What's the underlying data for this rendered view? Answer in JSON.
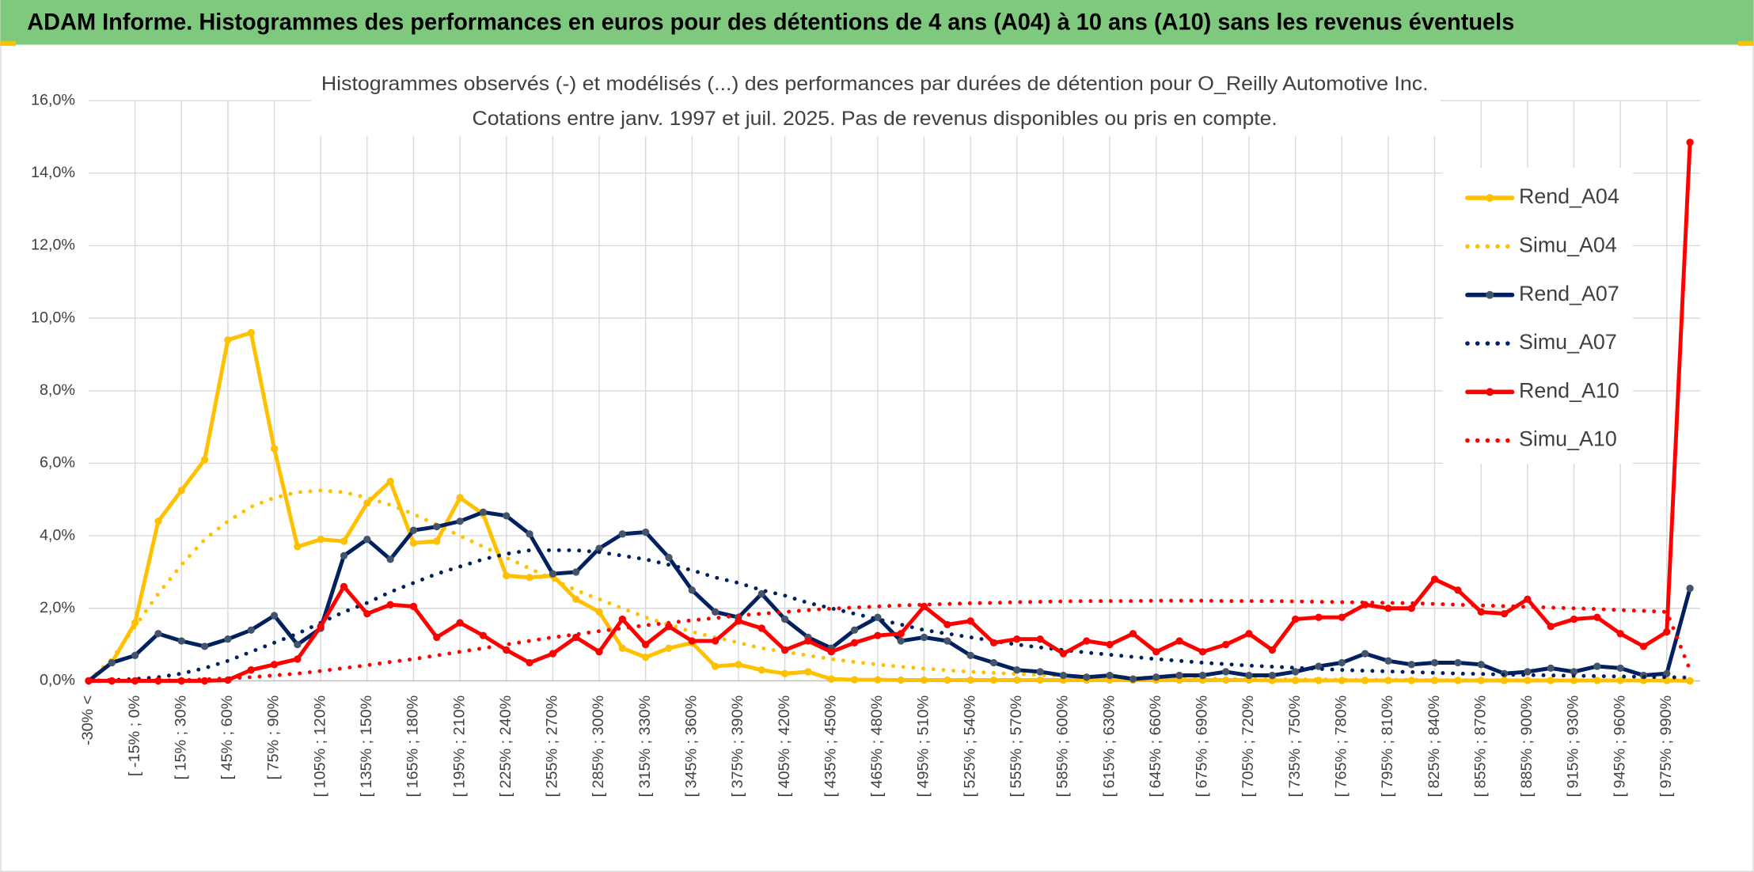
{
  "header": "ADAM Informe. Histogrammes des performances en euros pour des détentions de 4 ans (A04) à 10 ans (A10) sans les revenus éventuels",
  "chart_data": {
    "type": "line",
    "title": "Histogrammes observés (-) et modélisés (...) des performances par durées de détention pour O_Reilly Automotive Inc.",
    "subtitle": "Cotations entre janv. 1997 et juil. 2025. Pas de revenus disponibles ou pris en compte.",
    "categories": [
      "-30% <",
      null,
      "[ -15% ; 0%",
      null,
      "[ 15% ; 30%",
      null,
      "[ 45% ; 60%",
      null,
      "[ 75% ; 90%",
      null,
      "[ 105% ; 120%",
      null,
      "[ 135% ; 150%",
      null,
      "[ 165% ; 180%",
      null,
      "[ 195% ; 210%",
      null,
      "[ 225% ; 240%",
      null,
      "[ 255% ; 270%",
      null,
      "[ 285% ; 300%",
      null,
      "[ 315% ; 330%",
      null,
      "[ 345% ; 360%",
      null,
      "[ 375% ; 390%",
      null,
      "[ 405% ; 420%",
      null,
      "[ 435% ; 450%",
      null,
      "[ 465% ; 480%",
      null,
      "[ 495% ; 510%",
      null,
      "[ 525% ; 540%",
      null,
      "[ 555% ; 570%",
      null,
      "[ 585% ; 600%",
      null,
      "[ 615% ; 630%",
      null,
      "[ 645% ; 660%",
      null,
      "[ 675% ; 690%",
      null,
      "[ 705% ; 720%",
      null,
      "[ 735% ; 750%",
      null,
      "[ 765% ; 780%",
      null,
      "[ 795% ; 810%",
      null,
      "[ 825% ; 840%",
      null,
      "[ 855% ; 870%",
      null,
      "[ 885% ; 900%",
      null,
      "[ 915% ; 930%",
      null,
      "[ 945% ; 960%",
      null,
      "[ 975% ; 990%",
      null
    ],
    "ylim": [
      0,
      16
    ],
    "yticks": [
      {
        "value": 0,
        "label": "0,0%"
      },
      {
        "value": 2,
        "label": "2,0%"
      },
      {
        "value": 4,
        "label": "4,0%"
      },
      {
        "value": 6,
        "label": "6,0%"
      },
      {
        "value": 8,
        "label": "8,0%"
      },
      {
        "value": 10,
        "label": "10,0%"
      },
      {
        "value": 12,
        "label": "12,0%"
      },
      {
        "value": 14,
        "label": "14,0%"
      },
      {
        "value": 16,
        "label": "16,0%"
      }
    ],
    "grid": true,
    "legend": "right",
    "series": [
      {
        "name": "Rend_A04",
        "color": "#ffc000",
        "style": "solid",
        "marker_color": "#ffc000",
        "values": [
          0,
          0.5,
          1.6,
          4.4,
          5.25,
          6.1,
          9.4,
          9.6,
          6.4,
          3.7,
          3.9,
          3.85,
          4.9,
          5.5,
          3.8,
          3.85,
          5.05,
          4.6,
          2.9,
          2.85,
          2.9,
          2.25,
          1.9,
          0.9,
          0.65,
          0.9,
          1.05,
          0.4,
          0.45,
          0.3,
          0.2,
          0.25,
          0.05,
          0.03,
          0.03,
          0.02,
          0.02,
          0.02,
          0.02,
          0.02,
          0.02,
          0.02,
          0.02,
          0.02,
          0.02,
          0.02,
          0.02,
          0.02,
          0.02,
          0.02,
          0.02,
          0.01,
          0.01,
          0.01,
          0.01,
          0.01,
          0.01,
          0.01,
          0.01,
          0.01,
          0.01,
          0.01,
          0.01,
          0.01,
          0.01,
          0.01,
          0.01,
          0.01,
          0.01,
          0
        ]
      },
      {
        "name": "Simu_A04",
        "color": "#ffc000",
        "style": "dotted",
        "values": [
          0,
          0.6,
          1.5,
          2.4,
          3.2,
          3.9,
          4.4,
          4.8,
          5.05,
          5.2,
          5.25,
          5.2,
          5.05,
          4.85,
          4.6,
          4.3,
          4.0,
          3.7,
          3.4,
          3.1,
          2.8,
          2.5,
          2.25,
          2.0,
          1.75,
          1.55,
          1.35,
          1.2,
          1.05,
          0.9,
          0.8,
          0.7,
          0.6,
          0.52,
          0.45,
          0.39,
          0.34,
          0.29,
          0.25,
          0.22,
          0.19,
          0.16,
          0.14,
          0.12,
          0.1,
          0.09,
          0.08,
          0.07,
          0.06,
          0.05,
          0.05,
          0.04,
          0.04,
          0.04,
          0.03,
          0.03,
          0.03,
          0.03,
          0.02,
          0.02,
          0.02,
          0.02,
          0.02,
          0.02,
          0.01,
          0.01,
          0.01,
          0.01,
          0.01,
          0.01
        ]
      },
      {
        "name": "Rend_A07",
        "color": "#002060",
        "style": "solid",
        "marker_color": "#44546a",
        "values": [
          0,
          0.5,
          0.7,
          1.3,
          1.1,
          0.95,
          1.15,
          1.4,
          1.8,
          1.0,
          1.45,
          3.45,
          3.9,
          3.35,
          4.15,
          4.25,
          4.4,
          4.65,
          4.55,
          4.05,
          2.95,
          3.0,
          3.65,
          4.05,
          4.1,
          3.4,
          2.5,
          1.9,
          1.75,
          2.4,
          1.7,
          1.2,
          0.9,
          1.4,
          1.75,
          1.1,
          1.2,
          1.1,
          0.7,
          0.5,
          0.3,
          0.25,
          0.15,
          0.1,
          0.15,
          0.05,
          0.1,
          0.15,
          0.15,
          0.25,
          0.15,
          0.15,
          0.25,
          0.4,
          0.5,
          0.75,
          0.55,
          0.45,
          0.5,
          0.5,
          0.45,
          0.2,
          0.25,
          0.35,
          0.25,
          0.4,
          0.35,
          0.15,
          0.2,
          2.55
        ]
      },
      {
        "name": "Simu_A07",
        "color": "#002060",
        "style": "dotted",
        "values": [
          0,
          0.02,
          0.05,
          0.1,
          0.2,
          0.35,
          0.55,
          0.8,
          1.05,
          1.3,
          1.6,
          1.9,
          2.15,
          2.45,
          2.7,
          2.95,
          3.15,
          3.35,
          3.5,
          3.6,
          3.6,
          3.6,
          3.55,
          3.45,
          3.35,
          3.2,
          3.05,
          2.85,
          2.7,
          2.5,
          2.35,
          2.15,
          2.0,
          1.85,
          1.7,
          1.55,
          1.4,
          1.3,
          1.2,
          1.1,
          1.0,
          0.92,
          0.85,
          0.78,
          0.72,
          0.66,
          0.6,
          0.55,
          0.5,
          0.46,
          0.42,
          0.39,
          0.36,
          0.33,
          0.3,
          0.28,
          0.26,
          0.24,
          0.22,
          0.2,
          0.19,
          0.17,
          0.16,
          0.15,
          0.14,
          0.13,
          0.12,
          0.11,
          0.1,
          0.09
        ]
      },
      {
        "name": "Rend_A10",
        "color": "#ff0000",
        "style": "solid",
        "marker_color": "#ff0000",
        "values": [
          0,
          0,
          0,
          0,
          0,
          0,
          0.02,
          0.3,
          0.45,
          0.6,
          1.5,
          2.6,
          1.85,
          2.1,
          2.05,
          1.2,
          1.6,
          1.25,
          0.85,
          0.5,
          0.75,
          1.2,
          0.8,
          1.7,
          1.0,
          1.5,
          1.1,
          1.1,
          1.65,
          1.45,
          0.85,
          1.1,
          0.8,
          1.05,
          1.25,
          1.3,
          2.05,
          1.55,
          1.65,
          1.05,
          1.15,
          1.15,
          0.75,
          1.1,
          1.0,
          1.3,
          0.8,
          1.1,
          0.8,
          1.0,
          1.3,
          0.85,
          1.7,
          1.75,
          1.75,
          2.1,
          2.0,
          2.0,
          2.8,
          2.5,
          1.9,
          1.85,
          2.25,
          1.5,
          1.7,
          1.75,
          1.3,
          0.95,
          1.35,
          14.85
        ]
      },
      {
        "name": "Simu_A10",
        "color": "#ff0000",
        "style": "dotted",
        "values": [
          0,
          0,
          0,
          0.01,
          0.02,
          0.04,
          0.07,
          0.1,
          0.15,
          0.2,
          0.27,
          0.35,
          0.43,
          0.52,
          0.6,
          0.7,
          0.8,
          0.9,
          1.0,
          1.1,
          1.2,
          1.28,
          1.37,
          1.45,
          1.53,
          1.6,
          1.67,
          1.73,
          1.8,
          1.85,
          1.9,
          1.95,
          1.99,
          2.02,
          2.05,
          2.08,
          2.1,
          2.12,
          2.14,
          2.15,
          2.17,
          2.18,
          2.19,
          2.2,
          2.2,
          2.2,
          2.21,
          2.21,
          2.21,
          2.2,
          2.2,
          2.2,
          2.19,
          2.18,
          2.17,
          2.16,
          2.15,
          2.14,
          2.12,
          2.1,
          2.08,
          2.06,
          2.04,
          2.02,
          2.0,
          1.98,
          1.95,
          1.93,
          1.9,
          0.3
        ]
      }
    ]
  }
}
